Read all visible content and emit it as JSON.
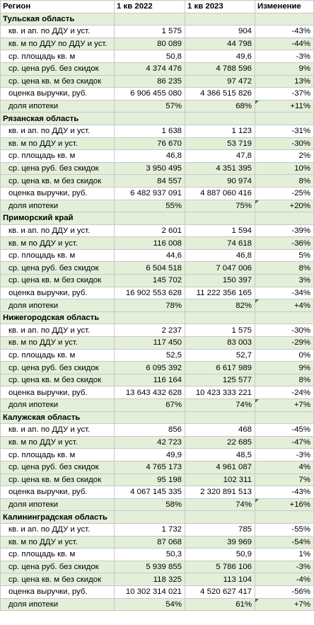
{
  "header": [
    "Регион",
    "1 кв 2022",
    "1 кв 2023",
    "Изменение"
  ],
  "regions": [
    {
      "name": "Тульская область",
      "rows": [
        {
          "label": "кв. и ап. по ДДУ и уст.",
          "q1_2022": "1 575",
          "q1_2023": "904",
          "change": "-43%"
        },
        {
          "label": "кв. м по ДДУ по ДДУ и уст.",
          "q1_2022": "80 089",
          "q1_2023": "44 798",
          "change": "-44%"
        },
        {
          "label": "ср. площадь кв. м",
          "q1_2022": "50,8",
          "q1_2023": "49,6",
          "change": "-3%"
        },
        {
          "label": "ср. цена руб. без скидок",
          "q1_2022": "4 374 476",
          "q1_2023": "4 788 596",
          "change": "9%"
        },
        {
          "label": "ср. цена кв. м без скидок",
          "q1_2022": "86 235",
          "q1_2023": "97 472",
          "change": "13%"
        },
        {
          "label": "оценка выручки, руб.",
          "q1_2022": "6 906 455 080",
          "q1_2023": "4 366 515 826",
          "change": "-37%"
        },
        {
          "label": "доля ипотеки",
          "q1_2022": "57%",
          "q1_2023": "68%",
          "change": "+11%"
        }
      ]
    },
    {
      "name": "Рязанская область",
      "rows": [
        {
          "label": "кв. и ап. по ДДУ и уст.",
          "q1_2022": "1 638",
          "q1_2023": "1 123",
          "change": "-31%"
        },
        {
          "label": "кв. м по ДДУ и уст.",
          "q1_2022": "76 670",
          "q1_2023": "53 719",
          "change": "-30%"
        },
        {
          "label": "ср. площадь кв. м",
          "q1_2022": "46,8",
          "q1_2023": "47,8",
          "change": "2%"
        },
        {
          "label": "ср. цена руб. без скидок",
          "q1_2022": "3 950 495",
          "q1_2023": "4 351 395",
          "change": "10%"
        },
        {
          "label": "ср. цена кв. м без скидок",
          "q1_2022": "84 557",
          "q1_2023": "90 974",
          "change": "8%"
        },
        {
          "label": "оценка выручки, руб.",
          "q1_2022": "6 482 937 091",
          "q1_2023": "4 887 060 416",
          "change": "-25%"
        },
        {
          "label": "доля ипотеки",
          "q1_2022": "55%",
          "q1_2023": "75%",
          "change": "+20%"
        }
      ]
    },
    {
      "name": "Приморский край",
      "rows": [
        {
          "label": "кв. и ап. по ДДУ и уст.",
          "q1_2022": "2 601",
          "q1_2023": "1 594",
          "change": "-39%"
        },
        {
          "label": "кв. м по ДДУ и уст.",
          "q1_2022": "116 008",
          "q1_2023": "74 618",
          "change": "-36%"
        },
        {
          "label": "ср. площадь кв. м",
          "q1_2022": "44,6",
          "q1_2023": "46,8",
          "change": "5%"
        },
        {
          "label": "ср. цена руб. без скидок",
          "q1_2022": "6 504 518",
          "q1_2023": "7 047 006",
          "change": "8%"
        },
        {
          "label": "ср. цена кв. м без скидок",
          "q1_2022": "145 702",
          "q1_2023": "150 397",
          "change": "3%"
        },
        {
          "label": "оценка выручки, руб.",
          "q1_2022": "16 902 553 628",
          "q1_2023": "11 222 356 165",
          "change": "-34%"
        },
        {
          "label": "доля ипотеки",
          "q1_2022": "78%",
          "q1_2023": "82%",
          "change": "+4%"
        }
      ]
    },
    {
      "name": "Нижегородская область",
      "rows": [
        {
          "label": "кв. и ап. по ДДУ и уст.",
          "q1_2022": "2 237",
          "q1_2023": "1 575",
          "change": "-30%"
        },
        {
          "label": "кв. м по ДДУ и уст.",
          "q1_2022": "117 450",
          "q1_2023": "83 003",
          "change": "-29%"
        },
        {
          "label": "ср. площадь кв. м",
          "q1_2022": "52,5",
          "q1_2023": "52,7",
          "change": "0%"
        },
        {
          "label": "ср. цена руб. без скидок",
          "q1_2022": "6 095 392",
          "q1_2023": "6 617 989",
          "change": "9%"
        },
        {
          "label": "ср. цена кв. м без скидок",
          "q1_2022": "116 164",
          "q1_2023": "125 577",
          "change": "8%"
        },
        {
          "label": "оценка выручки, руб.",
          "q1_2022": "13 643 432 628",
          "q1_2023": "10 423 333 221",
          "change": "-24%"
        },
        {
          "label": "доля ипотеки",
          "q1_2022": "67%",
          "q1_2023": "74%",
          "change": "+7%"
        }
      ]
    },
    {
      "name": "Калужская область",
      "rows": [
        {
          "label": "кв. и ап. по ДДУ и уст.",
          "q1_2022": "856",
          "q1_2023": "468",
          "change": "-45%"
        },
        {
          "label": "кв. м по ДДУ и уст.",
          "q1_2022": "42 723",
          "q1_2023": "22 685",
          "change": "-47%"
        },
        {
          "label": "ср. площадь кв. м",
          "q1_2022": "49,9",
          "q1_2023": "48,5",
          "change": "-3%"
        },
        {
          "label": "ср. цена руб. без скидок",
          "q1_2022": "4 765 173",
          "q1_2023": "4 961 087",
          "change": "4%"
        },
        {
          "label": "ср. цена кв. м без скидок",
          "q1_2022": "95 198",
          "q1_2023": "102 311",
          "change": "7%"
        },
        {
          "label": "оценка выручки, руб.",
          "q1_2022": "4 067 145 335",
          "q1_2023": "2 320 891 513",
          "change": "-43%"
        },
        {
          "label": "доля ипотеки",
          "q1_2022": "58%",
          "q1_2023": "74%",
          "change": "+16%"
        }
      ]
    },
    {
      "name": "Калининградская область",
      "rows": [
        {
          "label": "кв. и ап. по ДДУ и уст.",
          "q1_2022": "1 732",
          "q1_2023": "785",
          "change": "-55%"
        },
        {
          "label": "кв. м по ДДУ и уст.",
          "q1_2022": "87 068",
          "q1_2023": "39 969",
          "change": "-54%"
        },
        {
          "label": "ср. площадь кв. м",
          "q1_2022": "50,3",
          "q1_2023": "50,9",
          "change": "1%"
        },
        {
          "label": "ср. цена руб. без скидок",
          "q1_2022": "5 939 855",
          "q1_2023": "5 786 106",
          "change": "-3%"
        },
        {
          "label": "ср. цена кв. м без скидок",
          "q1_2022": "118 325",
          "q1_2023": "113 104",
          "change": "-4%"
        },
        {
          "label": "оценка выручки, руб.",
          "q1_2022": "10 302 314 021",
          "q1_2023": "4 520 627 417",
          "change": "-56%"
        },
        {
          "label": "доля ипотеки",
          "q1_2022": "54%",
          "q1_2023": "61%",
          "change": "+7%"
        }
      ]
    }
  ]
}
